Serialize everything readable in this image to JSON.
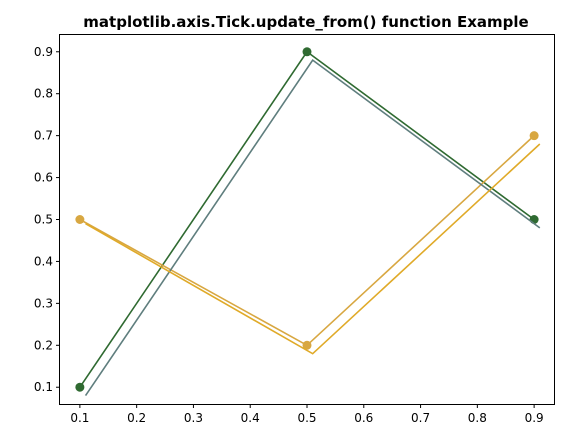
{
  "chart_data": {
    "type": "line",
    "title": "matplotlib.axis.Tick.update_from() function Example",
    "xlabel": "",
    "ylabel": "",
    "xlim": [
      0.065,
      0.935
    ],
    "ylim": [
      0.06,
      0.94
    ],
    "xticks": [
      "0.1",
      "0.2",
      "0.3",
      "0.4",
      "0.5",
      "0.6",
      "0.7",
      "0.8",
      "0.9"
    ],
    "yticks": [
      "0.1",
      "0.2",
      "0.3",
      "0.4",
      "0.5",
      "0.6",
      "0.7",
      "0.8",
      "0.9"
    ],
    "grid": false,
    "series": [
      {
        "x": [
          0.1,
          0.5,
          0.9
        ],
        "y": [
          0.1,
          0.9,
          0.5
        ],
        "color": "#2f6a31",
        "marker": "circle"
      },
      {
        "x": [
          0.1,
          0.5,
          0.9
        ],
        "y": [
          0.5,
          0.2,
          0.7
        ],
        "color": "#d8a741",
        "marker": "circle"
      },
      {
        "x": [
          0.11,
          0.51,
          0.91
        ],
        "y": [
          0.08,
          0.88,
          0.48
        ],
        "color": "#5f7e7e",
        "marker": "none"
      },
      {
        "x": [
          0.11,
          0.51,
          0.91
        ],
        "y": [
          0.49,
          0.18,
          0.68
        ],
        "color": "#e0aa28",
        "marker": "none"
      }
    ]
  }
}
